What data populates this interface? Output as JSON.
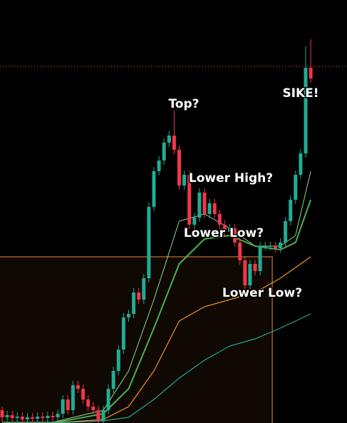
{
  "chart_data": {
    "type": "candlestick",
    "open": [
      18,
      8,
      11,
      7,
      9,
      5,
      8,
      6,
      9,
      7,
      10,
      8,
      13,
      33,
      18,
      53,
      48,
      33,
      23,
      18,
      3,
      18,
      48,
      73,
      103,
      148,
      153,
      183,
      173,
      203,
      303,
      353,
      368,
      393,
      403,
      383,
      333,
      348,
      278,
      288,
      323,
      293,
      308,
      293,
      278,
      268,
      273,
      253,
      228,
      193,
      223,
      213,
      248,
      248,
      248,
      245,
      253,
      283,
      313,
      348,
      378,
      498
    ],
    "high": [
      23,
      17,
      17,
      15,
      15,
      14,
      14,
      15,
      15,
      16,
      16,
      19,
      39,
      39,
      59,
      59,
      54,
      39,
      29,
      24,
      24,
      54,
      79,
      109,
      154,
      159,
      189,
      189,
      209,
      309,
      359,
      374,
      399,
      409,
      438,
      389,
      354,
      354,
      294,
      329,
      329,
      314,
      314,
      299,
      284,
      279,
      279,
      259,
      234,
      229,
      229,
      254,
      254,
      254,
      254,
      259,
      289,
      319,
      354,
      384,
      528,
      538
    ],
    "low": [
      2,
      2,
      1,
      1,
      0,
      0,
      0,
      0,
      1,
      1,
      2,
      2,
      7,
      12,
      12,
      42,
      27,
      17,
      12,
      0,
      0,
      12,
      42,
      67,
      97,
      142,
      147,
      167,
      167,
      197,
      297,
      347,
      362,
      387,
      377,
      327,
      327,
      272,
      272,
      282,
      287,
      287,
      287,
      272,
      262,
      262,
      247,
      222,
      187,
      187,
      207,
      207,
      242,
      242,
      239,
      239,
      247,
      277,
      307,
      342,
      372,
      477
    ],
    "close": [
      8,
      11,
      7,
      9,
      5,
      8,
      6,
      9,
      7,
      10,
      8,
      13,
      33,
      18,
      53,
      48,
      33,
      23,
      18,
      3,
      18,
      48,
      73,
      103,
      148,
      153,
      183,
      173,
      203,
      303,
      353,
      368,
      393,
      403,
      383,
      333,
      348,
      278,
      288,
      323,
      293,
      308,
      293,
      278,
      268,
      273,
      253,
      228,
      193,
      223,
      213,
      248,
      248,
      248,
      245,
      253,
      283,
      313,
      348,
      378,
      498,
      483
    ],
    "up_color": "#22ab94",
    "down_color": "#f23645",
    "ylim": [
      0,
      593
    ],
    "ma_x": [
      0,
      10,
      20,
      25,
      30,
      35,
      40,
      45,
      50,
      55,
      58,
      61
    ],
    "series": [
      {
        "color": "#8fd98f",
        "values": [
          1,
          1,
          18,
          73,
          173,
          283,
          293,
          273,
          248,
          248,
          263,
          353
        ]
      },
      {
        "color": "#4caf50",
        "values": [
          0,
          0,
          13,
          48,
          133,
          223,
          258,
          263,
          248,
          243,
          253,
          313
        ]
      },
      {
        "color": "#f7931e",
        "values": [
          0,
          0,
          5,
          23,
          73,
          143,
          163,
          173,
          183,
          203,
          218,
          233
        ]
      },
      {
        "color": "#26a69a",
        "values": [
          0,
          0,
          3,
          8,
          33,
          63,
          88,
          108,
          118,
          133,
          143,
          153
        ]
      }
    ],
    "price_line": {
      "value": 500,
      "color": "#e0703a"
    },
    "zone": {
      "top": 233,
      "x_end": 53.4,
      "color": "#c8742a"
    },
    "annotations": [
      "Top?",
      "Lower High?",
      "Lower Low?",
      "Lower Low?",
      "SIKE!"
    ]
  }
}
